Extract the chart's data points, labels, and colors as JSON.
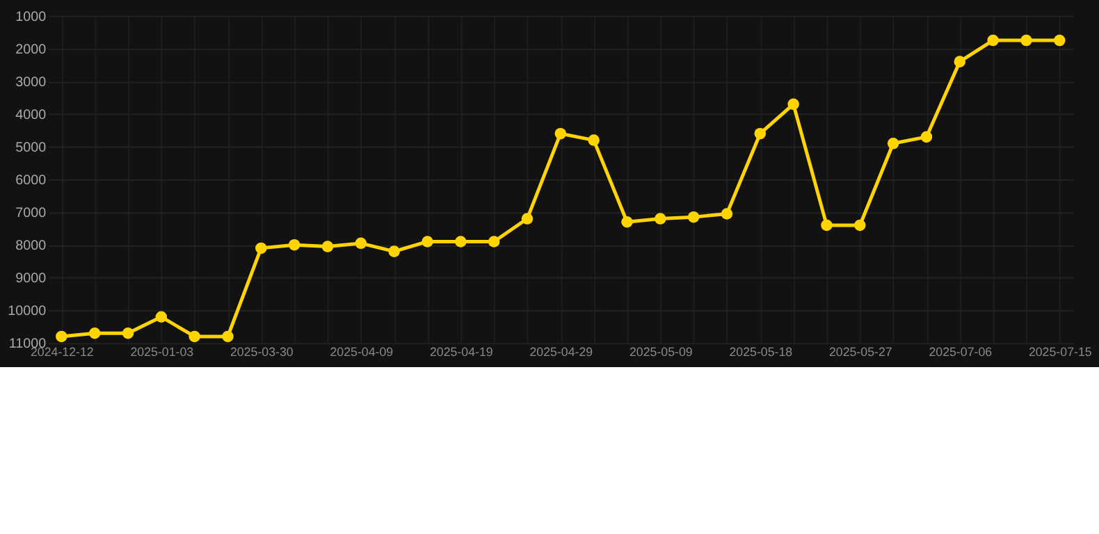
{
  "chart_data": {
    "type": "line",
    "categories": [
      "2024-12-12",
      null,
      null,
      "2025-01-03",
      null,
      null,
      "2025-03-30",
      null,
      null,
      "2025-04-09",
      null,
      null,
      "2025-04-19",
      null,
      null,
      "2025-04-29",
      null,
      null,
      "2025-05-09",
      null,
      null,
      "2025-05-18",
      null,
      null,
      "2025-05-27",
      null,
      null,
      "2025-07-06",
      null,
      null,
      "2025-07-15"
    ],
    "series": [
      {
        "color": "#ffd400",
        "values": [
          10800,
          10700,
          10700,
          10200,
          10800,
          10800,
          8100,
          8000,
          8050,
          7950,
          8200,
          7900,
          7900,
          7900,
          7200,
          4600,
          4800,
          7300,
          7200,
          7150,
          7050,
          4600,
          3700,
          7400,
          7400,
          4900,
          4700,
          2400,
          1750,
          1750,
          1750
        ]
      }
    ],
    "ylim": [
      11000,
      1000
    ],
    "yticks": [
      1000,
      2000,
      3000,
      4000,
      5000,
      6000,
      7000,
      8000,
      9000,
      10000,
      11000
    ],
    "grid": true,
    "marker": "circle",
    "line_style": "solid"
  }
}
